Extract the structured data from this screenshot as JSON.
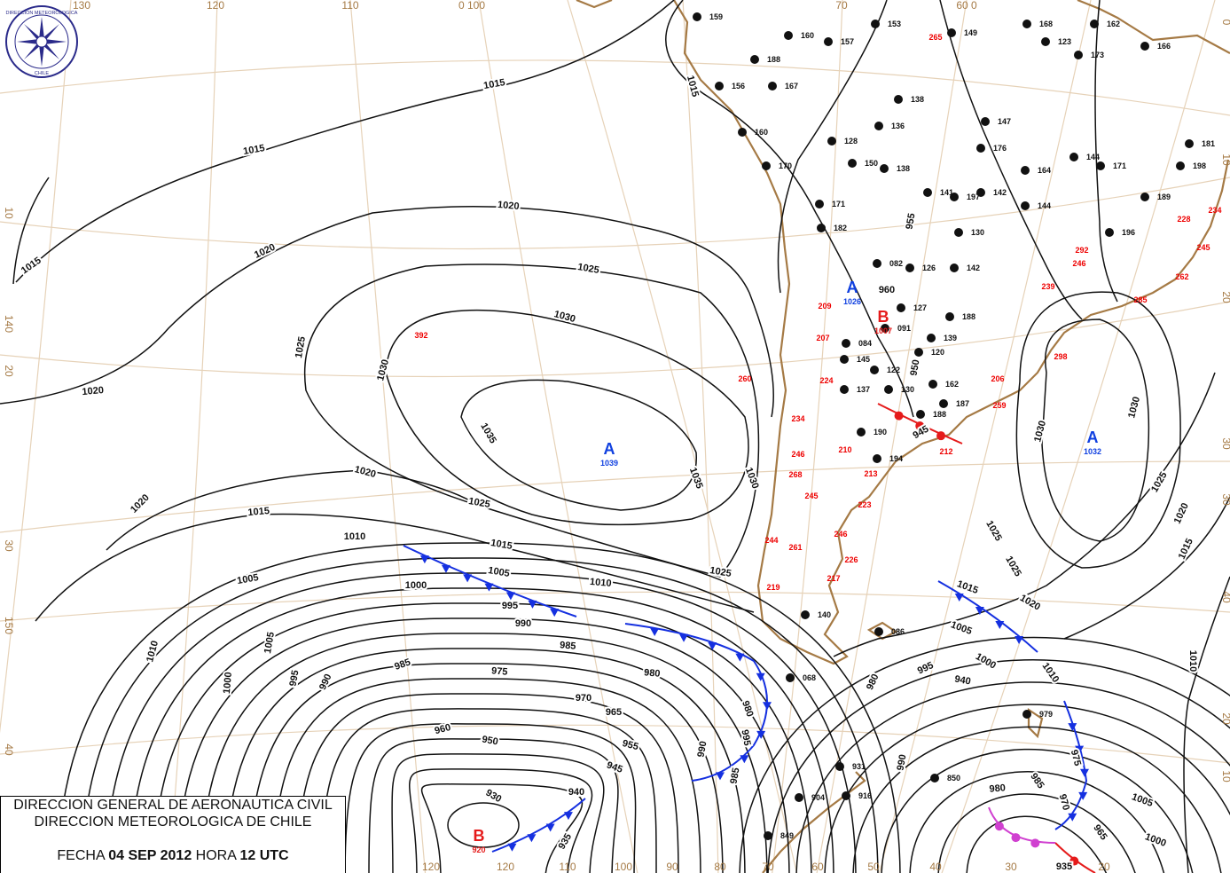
{
  "header": {
    "line1": "DIRECCION GENERAL DE AERONAUTICA CIVIL",
    "line2": "DIRECCION METEOROLOGICA DE CHILE",
    "date_label": "FECHA",
    "date": "04 SEP 2012",
    "time_label": "HORA",
    "time": "12 UTC"
  },
  "logo": {
    "top_text": "DIRECCION METEOROLOGICA",
    "bottom_text": "CHILE"
  },
  "colors": {
    "isobar": "#111111",
    "cold_front": "#1530e0",
    "warm_front": "#e51b1b",
    "occluded_front": "#d040d0",
    "coastline": "#a57a45",
    "graticule": "#e6d2b8"
  },
  "graticule_labels": {
    "top": [
      "130",
      "120",
      "110",
      "0 100",
      "70",
      "60 0"
    ],
    "bottom": [
      "120",
      "120",
      "110",
      "100",
      "90",
      "80",
      "70",
      "60",
      "50",
      "40",
      "30",
      "20"
    ],
    "left": [
      "10",
      "140",
      "20",
      "30",
      "150",
      "40"
    ],
    "right": [
      "0",
      "10",
      "20",
      "30",
      "30",
      "40",
      "20",
      "10"
    ]
  },
  "pressure_centers": [
    {
      "type": "A",
      "value": "1039"
    },
    {
      "type": "A",
      "value": "1026"
    },
    {
      "type": "B",
      "value": "1007"
    },
    {
      "type": "A",
      "value": "1032"
    },
    {
      "type": "B",
      "value": "920"
    }
  ],
  "isobar_labels": [
    "1015",
    "1015",
    "1015",
    "1020",
    "1020",
    "1020",
    "1025",
    "1025",
    "1025",
    "1030",
    "1030",
    "1030",
    "1035",
    "1035",
    "1020",
    "1020",
    "1025",
    "1025",
    "1015",
    "1015",
    "1010",
    "1010",
    "1005",
    "1005",
    "1000",
    "995",
    "990",
    "985",
    "980",
    "975",
    "970",
    "965",
    "960",
    "955",
    "950",
    "945",
    "940",
    "935",
    "930",
    "1010",
    "1005",
    "1000",
    "995",
    "990",
    "985",
    "980",
    "1025",
    "1020",
    "1015",
    "1030",
    "1030",
    "1025",
    "1020",
    "1015",
    "1010",
    "1005",
    "1000",
    "995",
    "990",
    "985",
    "980",
    "1005",
    "1000",
    "1015",
    "1010",
    "995",
    "990",
    "985",
    "980",
    "975",
    "970",
    "965",
    "960",
    "955",
    "950",
    "945",
    "940",
    "935",
    "930"
  ],
  "stations_black": [
    "159",
    "160",
    "157",
    "153",
    "188",
    "156",
    "167",
    "160",
    "170",
    "138",
    "136",
    "128",
    "150",
    "138",
    "141",
    "197",
    "142",
    "144",
    "164",
    "147",
    "176",
    "144",
    "171",
    "166",
    "173",
    "123",
    "168",
    "162",
    "149",
    "181",
    "198",
    "189",
    "196",
    "130",
    "126",
    "142",
    "188",
    "127",
    "091",
    "084",
    "145",
    "137",
    "130",
    "122",
    "120",
    "139",
    "162",
    "187",
    "188",
    "190",
    "194",
    "171",
    "182",
    "068",
    "086",
    "140",
    "931",
    "916",
    "904",
    "849",
    "850",
    "979",
    "082"
  ],
  "stations_red": [
    "265",
    "209",
    "207",
    "224",
    "234",
    "246",
    "210",
    "268",
    "213",
    "212",
    "206",
    "259",
    "260",
    "392",
    "228",
    "234",
    "245",
    "262",
    "285",
    "298",
    "239",
    "246",
    "292",
    "245",
    "223",
    "244",
    "246",
    "226",
    "217",
    "219",
    "261"
  ]
}
